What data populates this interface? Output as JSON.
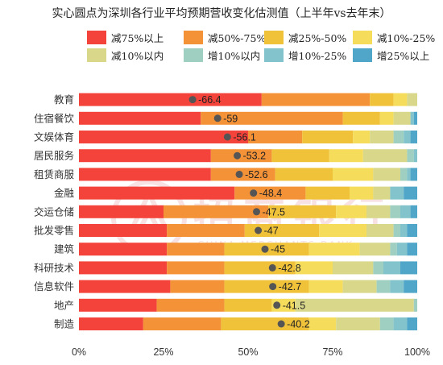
{
  "chart_data": {
    "type": "bar",
    "stacked": true,
    "orientation": "horizontal",
    "title": "实心圆点为深圳各行业平均预期营收变化估测值（上半年vs去年末）",
    "categories": [
      "教育",
      "住宿餐饮",
      "文娱体育",
      "居民服务",
      "租赁商服",
      "金融",
      "交运仓储",
      "批发零售",
      "建筑",
      "科研技术",
      "信息软件",
      "地产",
      "制造"
    ],
    "series": [
      {
        "name": "减75%以上",
        "color": "#f4433a",
        "values": [
          54,
          36,
          50,
          39,
          39,
          46,
          25,
          26,
          26,
          26,
          27,
          23,
          19
        ]
      },
      {
        "name": "减50%-75%",
        "color": "#f39237",
        "values": [
          32,
          42,
          16,
          18,
          19,
          21,
          31,
          23,
          17,
          17,
          16,
          20,
          23
        ]
      },
      {
        "name": "减25%-50%",
        "color": "#f0c23a",
        "values": [
          7,
          11,
          15,
          17,
          17,
          13,
          20,
          22,
          25,
          21,
          25,
          14,
          26
        ]
      },
      {
        "name": "减10%-25%",
        "color": "#f6dc5b",
        "values": [
          4,
          4,
          5,
          10,
          12,
          7,
          9,
          14,
          15,
          11,
          10,
          7,
          8
        ]
      },
      {
        "name": "减10%以内",
        "color": "#d8d78a",
        "values": [
          3,
          5,
          7,
          13,
          8,
          5,
          7,
          8,
          9,
          12,
          10,
          35,
          13
        ]
      },
      {
        "name": "增10%以内",
        "color": "#9fcfc0",
        "values": [
          0,
          0,
          3,
          2,
          2,
          0,
          3,
          2,
          2,
          3,
          4,
          1,
          4
        ]
      },
      {
        "name": "增10%-25%",
        "color": "#82c3cc",
        "values": [
          0,
          1,
          2,
          1,
          1,
          4,
          3,
          2,
          3,
          5,
          4,
          0,
          4
        ]
      },
      {
        "name": "增25%以上",
        "color": "#4fa6c8",
        "values": [
          0,
          1,
          2,
          0,
          2,
          4,
          2,
          3,
          3,
          5,
          4,
          0,
          3
        ]
      }
    ],
    "markers": {
      "values": [
        -66.4,
        -59,
        -56.1,
        -53.2,
        -52.6,
        -48.4,
        -47.5,
        -47,
        -45,
        -42.8,
        -42.7,
        -41.5,
        -40.2
      ],
      "color": "#555555"
    },
    "x_ticks": [
      "0%",
      "25%",
      "50%",
      "75%",
      "100%"
    ],
    "xlim": [
      0,
      100
    ],
    "legend": "top"
  },
  "watermark": {
    "name": "招商银行",
    "sub": "CHINA MERCHANTS BANK"
  }
}
